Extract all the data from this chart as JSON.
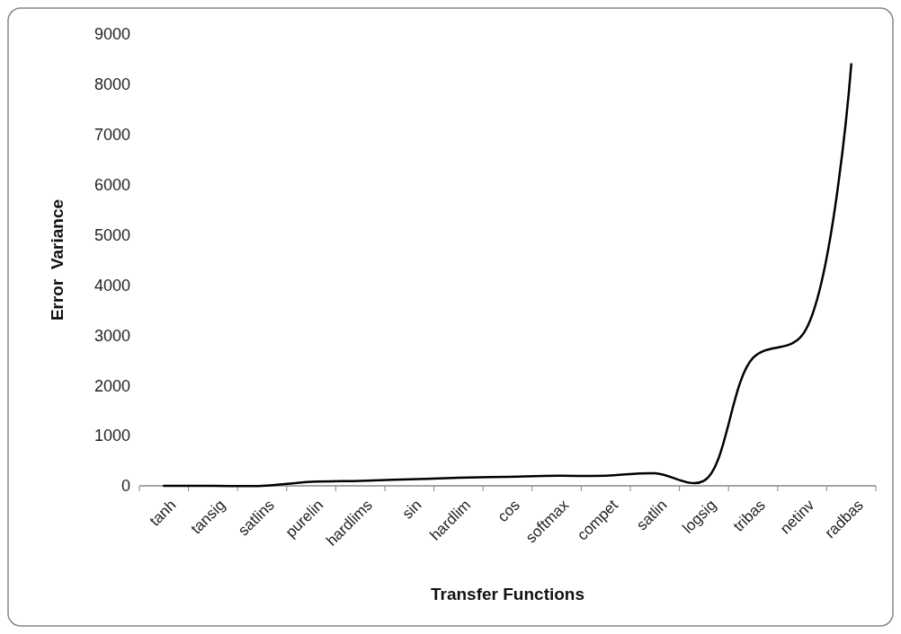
{
  "chart_data": {
    "type": "line",
    "xlabel": "Transfer Functions",
    "ylabel": "Error  Variance",
    "categories": [
      "tanh",
      "tansig",
      "satlins",
      "purelin",
      "hardlims",
      "sin",
      "hardlim",
      "cos",
      "softmax",
      "compet",
      "satlin",
      "logsig",
      "tribas",
      "netinv",
      "radbas"
    ],
    "series": [
      {
        "color": "#000000",
        "values": [
          0,
          0,
          0,
          80,
          100,
          130,
          160,
          180,
          200,
          200,
          250,
          100,
          2550,
          3000,
          8400
        ]
      }
    ],
    "ylim": [
      0,
      9000
    ],
    "yticks": [
      0,
      1000,
      2000,
      3000,
      4000,
      5000,
      6000,
      7000,
      8000,
      9000
    ],
    "grid": false,
    "marker": "none",
    "line_style": "solid"
  }
}
